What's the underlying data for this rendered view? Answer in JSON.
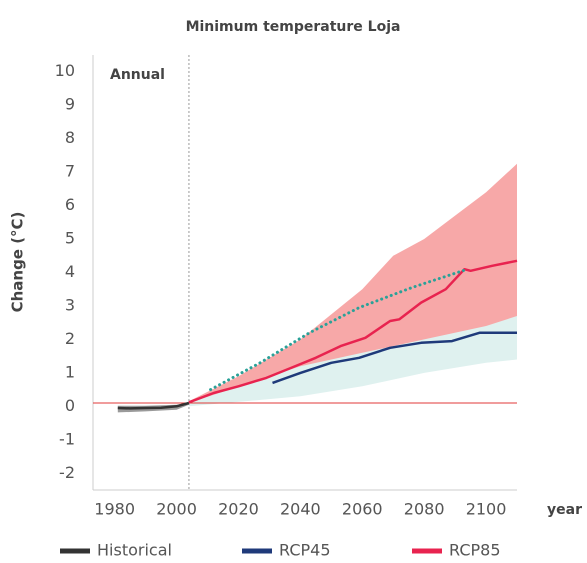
{
  "chart_data": {
    "type": "line",
    "title": "Minimum temperature Loja",
    "annotation": "Annual",
    "y_label": "Change (°C)",
    "x_label": "year",
    "xlim": [
      1973,
      2110
    ],
    "ylim": [
      -2.5,
      10.5
    ],
    "xticks": [
      1980,
      2000,
      2020,
      2040,
      2060,
      2080,
      2100
    ],
    "yticks": [
      -2,
      -1,
      0,
      1,
      2,
      3,
      4,
      5,
      6,
      7,
      8,
      9,
      10
    ],
    "vline": 2004,
    "vline_color": "#999999",
    "hline": 0.1,
    "hline_color": "#e03a3a",
    "bands": [
      {
        "color": "#9a9a9a",
        "x": [
          1981,
          1990,
          2000,
          2004
        ],
        "lower": [
          -0.18,
          -0.15,
          -0.1,
          0.05
        ],
        "upper": [
          0.02,
          0.02,
          0.05,
          0.12
        ]
      },
      {
        "color": "#f7a8a8",
        "x": [
          2004,
          2020,
          2040,
          2060,
          2070,
          2080,
          2090,
          2100,
          2110
        ],
        "lower": [
          0.05,
          0.3,
          0.6,
          0.9,
          1.1,
          1.3,
          1.5,
          1.7,
          2.0
        ],
        "upper": [
          0.15,
          0.9,
          2.0,
          3.5,
          4.5,
          5.0,
          5.7,
          6.4,
          7.25
        ]
      },
      {
        "color": "#dff1ef",
        "x": [
          2004,
          2040,
          2060,
          2080,
          2100,
          2110
        ],
        "lower": [
          0.0,
          0.3,
          0.6,
          1.0,
          1.3,
          1.4
        ],
        "upper": [
          0.1,
          1.2,
          1.6,
          2.0,
          2.4,
          2.7
        ]
      }
    ],
    "series": [
      {
        "name": "Historical",
        "color": "#333333",
        "x": [
          1981,
          1985,
          1990,
          1995,
          2000,
          2004
        ],
        "values": [
          -0.05,
          -0.06,
          -0.05,
          -0.04,
          0.0,
          0.1
        ]
      },
      {
        "name": "RCP45",
        "color": "#1f3a7a",
        "x": [
          2031,
          2040,
          2050,
          2059,
          2069,
          2079,
          2089,
          2098,
          2110
        ],
        "values": [
          0.7,
          1.0,
          1.3,
          1.45,
          1.75,
          1.9,
          1.95,
          2.2,
          2.2
        ]
      },
      {
        "name": "RCP85",
        "color": "#e8234f",
        "x": [
          2004,
          2012,
          2020,
          2029,
          2037,
          2045,
          2053,
          2061,
          2069,
          2072,
          2079,
          2087,
          2093,
          2095,
          2102,
          2110
        ],
        "values": [
          0.12,
          0.4,
          0.6,
          0.85,
          1.15,
          1.45,
          1.8,
          2.05,
          2.55,
          2.6,
          3.1,
          3.5,
          4.1,
          4.05,
          4.2,
          4.35
        ]
      },
      {
        "color": "#2aa198",
        "dash": "dotted",
        "x": [
          2011,
          2027,
          2043,
          2059,
          2076,
          2094
        ],
        "values": [
          0.5,
          1.3,
          2.2,
          2.95,
          3.55,
          4.1
        ]
      }
    ]
  }
}
